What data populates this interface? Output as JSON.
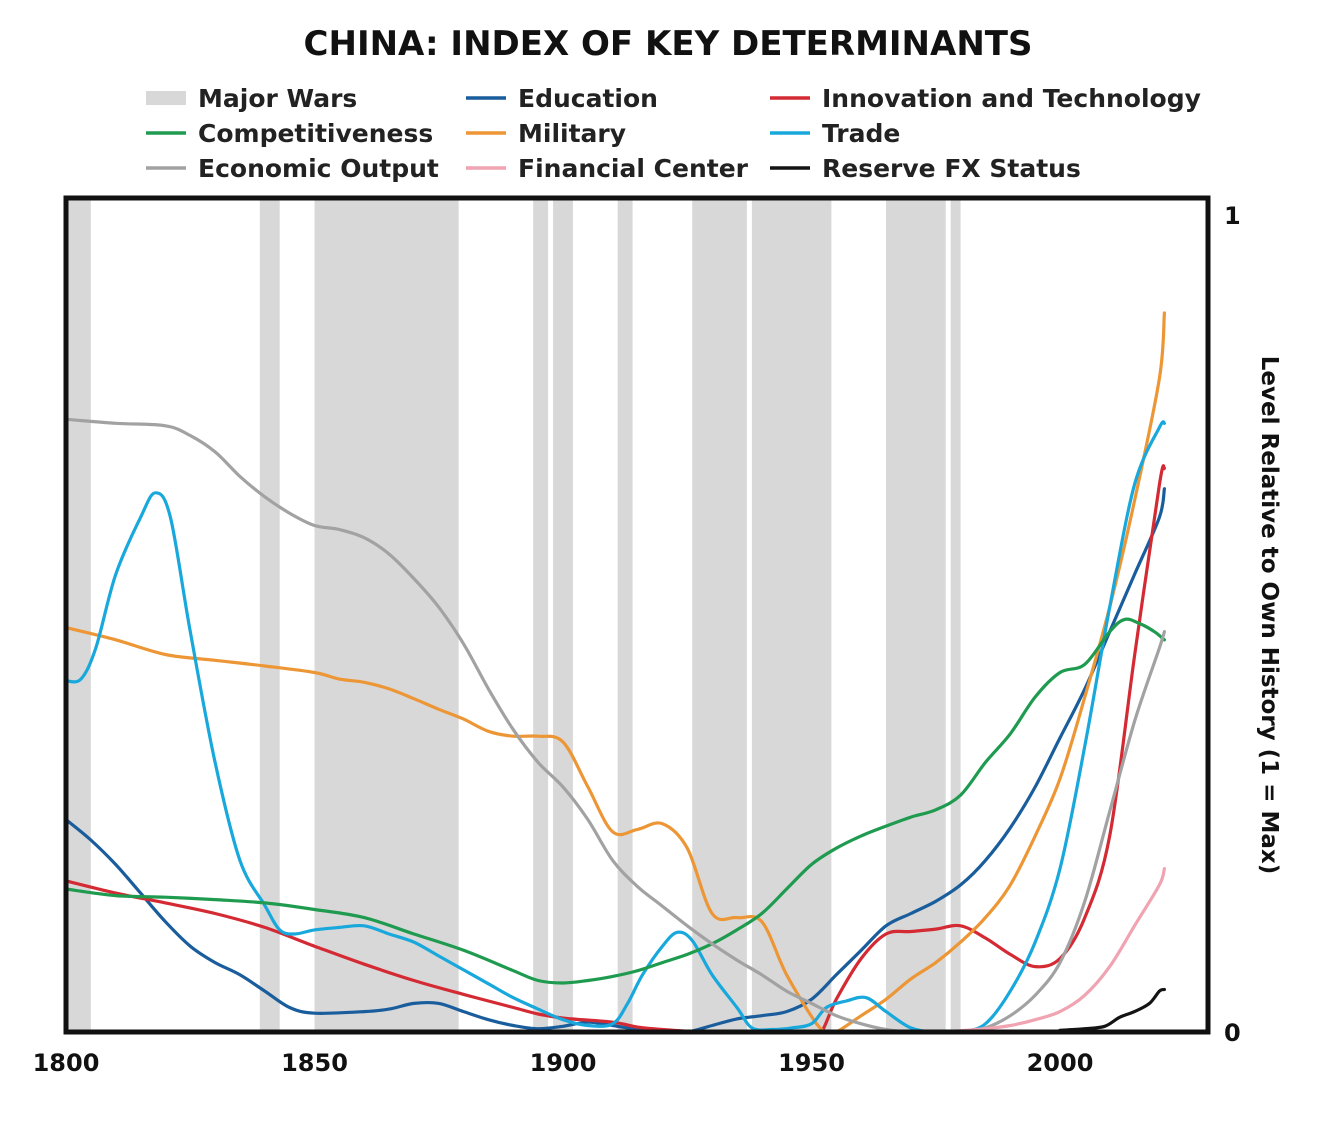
{
  "chart_data": {
    "type": "line",
    "title": "CHINA: INDEX OF KEY DETERMINANTS",
    "ylabel": "Level Relative to Own History (1 = Max)",
    "xlim": [
      1800,
      2030
    ],
    "ylim": [
      0,
      1
    ],
    "x_ticks": [
      "1800",
      "1850",
      "1900",
      "1950",
      "2000"
    ],
    "y_ticks": [
      "0",
      "1"
    ],
    "y_axis_side": "right",
    "grid": false,
    "legend_position": "top",
    "wars_label": "Major Wars",
    "wars_color": "#d8d8d8",
    "major_wars": [
      [
        1800,
        1805
      ],
      [
        1839,
        1843
      ],
      [
        1850,
        1879
      ],
      [
        1894,
        1897
      ],
      [
        1898,
        1902
      ],
      [
        1911,
        1914
      ],
      [
        1926,
        1937
      ],
      [
        1938,
        1954
      ],
      [
        1965,
        1977
      ],
      [
        1978,
        1980
      ]
    ],
    "series": [
      {
        "name": "Education",
        "color": "#1a5d9c",
        "points": [
          [
            1800,
            0.26
          ],
          [
            1805,
            0.235
          ],
          [
            1810,
            0.205
          ],
          [
            1815,
            0.17
          ],
          [
            1820,
            0.135
          ],
          [
            1825,
            0.105
          ],
          [
            1830,
            0.085
          ],
          [
            1835,
            0.07
          ],
          [
            1840,
            0.05
          ],
          [
            1845,
            0.03
          ],
          [
            1850,
            0.023
          ],
          [
            1860,
            0.025
          ],
          [
            1865,
            0.028
          ],
          [
            1870,
            0.035
          ],
          [
            1875,
            0.035
          ],
          [
            1880,
            0.025
          ],
          [
            1885,
            0.015
          ],
          [
            1890,
            0.008
          ],
          [
            1895,
            0.004
          ],
          [
            1900,
            0.007
          ],
          [
            1905,
            0.012
          ],
          [
            1910,
            0.008
          ],
          [
            1915,
            0.003
          ],
          [
            1920,
            0.0
          ],
          [
            1925,
            0.0
          ],
          [
            1930,
            0.008
          ],
          [
            1935,
            0.016
          ],
          [
            1940,
            0.02
          ],
          [
            1945,
            0.025
          ],
          [
            1950,
            0.04
          ],
          [
            1955,
            0.07
          ],
          [
            1960,
            0.1
          ],
          [
            1965,
            0.13
          ],
          [
            1970,
            0.145
          ],
          [
            1975,
            0.16
          ],
          [
            1980,
            0.18
          ],
          [
            1985,
            0.21
          ],
          [
            1990,
            0.25
          ],
          [
            1995,
            0.3
          ],
          [
            2000,
            0.36
          ],
          [
            2005,
            0.42
          ],
          [
            2010,
            0.49
          ],
          [
            2015,
            0.56
          ],
          [
            2020,
            0.63
          ],
          [
            2021,
            0.665
          ]
        ]
      },
      {
        "name": "Innovation and Technology",
        "color": "#d42a33",
        "points": [
          [
            1800,
            0.185
          ],
          [
            1810,
            0.17
          ],
          [
            1820,
            0.158
          ],
          [
            1830,
            0.145
          ],
          [
            1840,
            0.128
          ],
          [
            1850,
            0.105
          ],
          [
            1860,
            0.083
          ],
          [
            1870,
            0.063
          ],
          [
            1880,
            0.046
          ],
          [
            1890,
            0.03
          ],
          [
            1895,
            0.022
          ],
          [
            1900,
            0.017
          ],
          [
            1910,
            0.012
          ],
          [
            1915,
            0.006
          ],
          [
            1920,
            0.003
          ],
          [
            1925,
            0.001
          ],
          [
            1930,
            0.0
          ],
          [
            1940,
            0.0
          ],
          [
            1950,
            0.0
          ],
          [
            1952,
            0.0
          ],
          [
            1955,
            0.04
          ],
          [
            1960,
            0.09
          ],
          [
            1965,
            0.12
          ],
          [
            1970,
            0.123
          ],
          [
            1975,
            0.126
          ],
          [
            1980,
            0.13
          ],
          [
            1985,
            0.115
          ],
          [
            1990,
            0.095
          ],
          [
            1995,
            0.08
          ],
          [
            2000,
            0.09
          ],
          [
            2005,
            0.14
          ],
          [
            2010,
            0.24
          ],
          [
            2015,
            0.46
          ],
          [
            2020,
            0.67
          ],
          [
            2021,
            0.69
          ]
        ]
      },
      {
        "name": "Military",
        "color": "#ed9636",
        "points": [
          [
            1800,
            0.495
          ],
          [
            1810,
            0.48
          ],
          [
            1820,
            0.462
          ],
          [
            1830,
            0.455
          ],
          [
            1840,
            0.448
          ],
          [
            1850,
            0.44
          ],
          [
            1855,
            0.432
          ],
          [
            1860,
            0.428
          ],
          [
            1865,
            0.42
          ],
          [
            1870,
            0.408
          ],
          [
            1875,
            0.395
          ],
          [
            1880,
            0.383
          ],
          [
            1885,
            0.368
          ],
          [
            1890,
            0.362
          ],
          [
            1895,
            0.362
          ],
          [
            1900,
            0.355
          ],
          [
            1905,
            0.3
          ],
          [
            1910,
            0.245
          ],
          [
            1915,
            0.248
          ],
          [
            1920,
            0.255
          ],
          [
            1925,
            0.225
          ],
          [
            1930,
            0.145
          ],
          [
            1935,
            0.14
          ],
          [
            1940,
            0.135
          ],
          [
            1945,
            0.07
          ],
          [
            1951,
            0.01
          ],
          [
            1953,
            0.0
          ],
          [
            1955,
            0.0
          ],
          [
            1960,
            0.02
          ],
          [
            1965,
            0.04
          ],
          [
            1970,
            0.065
          ],
          [
            1975,
            0.085
          ],
          [
            1980,
            0.11
          ],
          [
            1985,
            0.14
          ],
          [
            1990,
            0.18
          ],
          [
            1995,
            0.24
          ],
          [
            2000,
            0.31
          ],
          [
            2005,
            0.41
          ],
          [
            2010,
            0.52
          ],
          [
            2015,
            0.65
          ],
          [
            2020,
            0.8
          ],
          [
            2021,
            0.88
          ]
        ]
      },
      {
        "name": "Trade",
        "color": "#18a8dc",
        "points": [
          [
            1800,
            0.43
          ],
          [
            1803,
            0.432
          ],
          [
            1806,
            0.47
          ],
          [
            1810,
            0.56
          ],
          [
            1815,
            0.63
          ],
          [
            1818,
            0.66
          ],
          [
            1821,
            0.63
          ],
          [
            1825,
            0.49
          ],
          [
            1830,
            0.33
          ],
          [
            1835,
            0.21
          ],
          [
            1840,
            0.155
          ],
          [
            1843,
            0.125
          ],
          [
            1846,
            0.12
          ],
          [
            1850,
            0.125
          ],
          [
            1855,
            0.128
          ],
          [
            1860,
            0.13
          ],
          [
            1865,
            0.12
          ],
          [
            1870,
            0.11
          ],
          [
            1875,
            0.093
          ],
          [
            1880,
            0.076
          ],
          [
            1885,
            0.059
          ],
          [
            1890,
            0.042
          ],
          [
            1895,
            0.028
          ],
          [
            1900,
            0.015
          ],
          [
            1905,
            0.008
          ],
          [
            1910,
            0.01
          ],
          [
            1913,
            0.035
          ],
          [
            1916,
            0.07
          ],
          [
            1920,
            0.105
          ],
          [
            1923,
            0.122
          ],
          [
            1926,
            0.112
          ],
          [
            1930,
            0.07
          ],
          [
            1935,
            0.03
          ],
          [
            1938,
            0.005
          ],
          [
            1942,
            0.003
          ],
          [
            1946,
            0.005
          ],
          [
            1950,
            0.01
          ],
          [
            1953,
            0.03
          ],
          [
            1957,
            0.038
          ],
          [
            1961,
            0.042
          ],
          [
            1965,
            0.025
          ],
          [
            1970,
            0.005
          ],
          [
            1975,
            0.0
          ],
          [
            1980,
            0.0
          ],
          [
            1985,
            0.01
          ],
          [
            1990,
            0.05
          ],
          [
            1995,
            0.11
          ],
          [
            2000,
            0.2
          ],
          [
            2005,
            0.35
          ],
          [
            2010,
            0.52
          ],
          [
            2015,
            0.67
          ],
          [
            2020,
            0.74
          ],
          [
            2021,
            0.745
          ]
        ]
      },
      {
        "name": "Competitiveness",
        "color": "#1f9b50",
        "points": [
          [
            1800,
            0.175
          ],
          [
            1810,
            0.167
          ],
          [
            1820,
            0.165
          ],
          [
            1830,
            0.162
          ],
          [
            1840,
            0.158
          ],
          [
            1850,
            0.15
          ],
          [
            1860,
            0.14
          ],
          [
            1870,
            0.12
          ],
          [
            1880,
            0.1
          ],
          [
            1890,
            0.075
          ],
          [
            1895,
            0.063
          ],
          [
            1900,
            0.06
          ],
          [
            1905,
            0.063
          ],
          [
            1910,
            0.068
          ],
          [
            1915,
            0.075
          ],
          [
            1920,
            0.085
          ],
          [
            1925,
            0.095
          ],
          [
            1930,
            0.108
          ],
          [
            1935,
            0.125
          ],
          [
            1940,
            0.145
          ],
          [
            1945,
            0.175
          ],
          [
            1950,
            0.205
          ],
          [
            1955,
            0.225
          ],
          [
            1960,
            0.24
          ],
          [
            1965,
            0.252
          ],
          [
            1970,
            0.263
          ],
          [
            1975,
            0.272
          ],
          [
            1980,
            0.29
          ],
          [
            1985,
            0.33
          ],
          [
            1990,
            0.365
          ],
          [
            1995,
            0.41
          ],
          [
            2000,
            0.44
          ],
          [
            2005,
            0.45
          ],
          [
            2010,
            0.49
          ],
          [
            2013,
            0.505
          ],
          [
            2016,
            0.5
          ],
          [
            2019,
            0.49
          ],
          [
            2021,
            0.48
          ]
        ]
      },
      {
        "name": "Economic Output",
        "color": "#a2a2a2",
        "points": [
          [
            1800,
            0.75
          ],
          [
            1810,
            0.745
          ],
          [
            1820,
            0.742
          ],
          [
            1825,
            0.73
          ],
          [
            1830,
            0.71
          ],
          [
            1835,
            0.68
          ],
          [
            1840,
            0.655
          ],
          [
            1845,
            0.635
          ],
          [
            1850,
            0.62
          ],
          [
            1855,
            0.615
          ],
          [
            1860,
            0.605
          ],
          [
            1865,
            0.585
          ],
          [
            1870,
            0.555
          ],
          [
            1875,
            0.52
          ],
          [
            1880,
            0.475
          ],
          [
            1885,
            0.42
          ],
          [
            1890,
            0.37
          ],
          [
            1895,
            0.33
          ],
          [
            1900,
            0.3
          ],
          [
            1905,
            0.26
          ],
          [
            1910,
            0.21
          ],
          [
            1915,
            0.178
          ],
          [
            1920,
            0.154
          ],
          [
            1925,
            0.13
          ],
          [
            1930,
            0.108
          ],
          [
            1935,
            0.088
          ],
          [
            1940,
            0.07
          ],
          [
            1945,
            0.05
          ],
          [
            1950,
            0.035
          ],
          [
            1955,
            0.02
          ],
          [
            1960,
            0.01
          ],
          [
            1965,
            0.003
          ],
          [
            1970,
            0.0
          ],
          [
            1975,
            0.0
          ],
          [
            1980,
            0.0
          ],
          [
            1985,
            0.005
          ],
          [
            1990,
            0.02
          ],
          [
            1995,
            0.045
          ],
          [
            2000,
            0.085
          ],
          [
            2005,
            0.16
          ],
          [
            2010,
            0.27
          ],
          [
            2015,
            0.38
          ],
          [
            2020,
            0.47
          ],
          [
            2021,
            0.49
          ]
        ]
      },
      {
        "name": "Financial Center",
        "color": "#f0a3b0",
        "points": [
          [
            1800,
            0.0
          ],
          [
            1960,
            0.0
          ],
          [
            1975,
            0.0
          ],
          [
            1985,
            0.004
          ],
          [
            1990,
            0.008
          ],
          [
            1995,
            0.015
          ],
          [
            2000,
            0.025
          ],
          [
            2005,
            0.045
          ],
          [
            2010,
            0.08
          ],
          [
            2015,
            0.13
          ],
          [
            2020,
            0.18
          ],
          [
            2021,
            0.2
          ]
        ]
      },
      {
        "name": "Reserve FX Status",
        "color": "#141414",
        "points": [
          [
            1800,
            0.0
          ],
          [
            1995,
            0.0
          ],
          [
            2000,
            0.002
          ],
          [
            2005,
            0.004
          ],
          [
            2009,
            0.007
          ],
          [
            2012,
            0.018
          ],
          [
            2015,
            0.025
          ],
          [
            2018,
            0.035
          ],
          [
            2020,
            0.05
          ],
          [
            2021,
            0.052
          ]
        ]
      }
    ]
  }
}
